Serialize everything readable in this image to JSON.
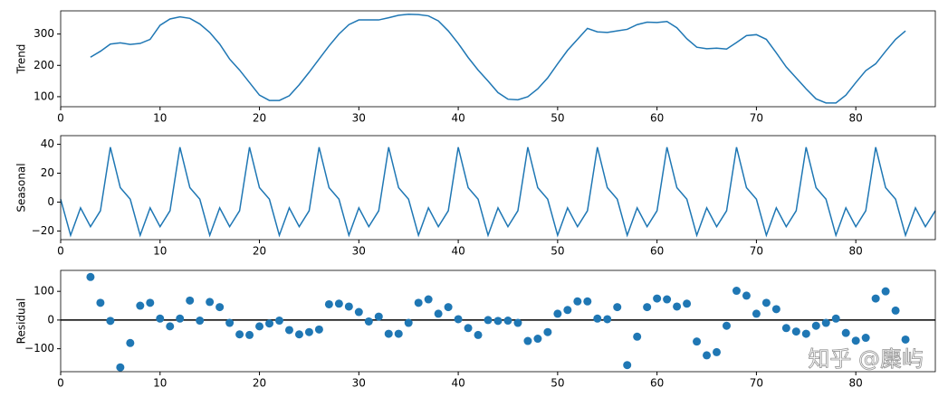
{
  "chart_data": [
    {
      "type": "line",
      "ylabel": "Trend",
      "color": "#1f77b4",
      "x": [
        3,
        4,
        5,
        6,
        7,
        8,
        9,
        10,
        11,
        12,
        13,
        14,
        15,
        16,
        17,
        18,
        19,
        20,
        21,
        22,
        23,
        24,
        25,
        26,
        27,
        28,
        29,
        30,
        31,
        32,
        33,
        34,
        35,
        36,
        37,
        38,
        39,
        40,
        41,
        42,
        43,
        44,
        45,
        46,
        47,
        48,
        49,
        50,
        51,
        52,
        53,
        54,
        55,
        56,
        57,
        58,
        59,
        60,
        61,
        62,
        63,
        64,
        65,
        66,
        67,
        68,
        69,
        70,
        71,
        72,
        73,
        74,
        75,
        76,
        77,
        78,
        79,
        80,
        81,
        82,
        83,
        84,
        85
      ],
      "values": [
        226,
        245,
        268,
        272,
        267,
        270,
        283,
        328,
        348,
        355,
        350,
        332,
        305,
        268,
        220,
        185,
        145,
        105,
        88,
        88,
        103,
        138,
        178,
        220,
        262,
        300,
        330,
        345,
        345,
        345,
        352,
        360,
        363,
        362,
        358,
        342,
        310,
        270,
        225,
        185,
        150,
        113,
        92,
        90,
        100,
        125,
        160,
        205,
        248,
        283,
        318,
        307,
        305,
        310,
        315,
        330,
        338,
        337,
        340,
        320,
        285,
        258,
        253,
        255,
        252,
        273,
        295,
        298,
        283,
        240,
        195,
        160,
        125,
        93,
        80,
        80,
        105,
        145,
        183,
        205,
        245,
        283,
        310
      ],
      "xlim": [
        0,
        88
      ],
      "ylim": [
        68,
        374
      ],
      "xticks": [
        0,
        10,
        20,
        30,
        40,
        50,
        60,
        70,
        80
      ],
      "yticks": [
        100,
        200,
        300
      ]
    },
    {
      "type": "line",
      "ylabel": "Seasonal",
      "color": "#1f77b4",
      "x": [
        0,
        1,
        2,
        3,
        4,
        5,
        6,
        7,
        8,
        9,
        10,
        11,
        12,
        13,
        14,
        15,
        16,
        17,
        18,
        19,
        20,
        21,
        22,
        23,
        24,
        25,
        26,
        27,
        28,
        29,
        30,
        31,
        32,
        33,
        34,
        35,
        36,
        37,
        38,
        39,
        40,
        41,
        42,
        43,
        44,
        45,
        46,
        47,
        48,
        49,
        50,
        51,
        52,
        53,
        54,
        55,
        56,
        57,
        58,
        59,
        60,
        61,
        62,
        63,
        64,
        65,
        66,
        67,
        68,
        69,
        70,
        71,
        72,
        73,
        74,
        75,
        76,
        77,
        78,
        79,
        80,
        81,
        82,
        83,
        84,
        85,
        86,
        87,
        88
      ],
      "values": [
        2,
        -23,
        -4,
        -17,
        -6,
        38,
        10,
        2,
        -23,
        -4,
        -17,
        -6,
        38,
        10,
        2,
        -23,
        -4,
        -17,
        -6,
        38,
        10,
        2,
        -23,
        -4,
        -17,
        -6,
        38,
        10,
        2,
        -23,
        -4,
        -17,
        -6,
        38,
        10,
        2,
        -23,
        -4,
        -17,
        -6,
        38,
        10,
        2,
        -23,
        -4,
        -17,
        -6,
        38,
        10,
        2,
        -23,
        -4,
        -17,
        -6,
        38,
        10,
        2,
        -23,
        -4,
        -17,
        -6,
        38,
        10,
        2,
        -23,
        -4,
        -17,
        -6,
        38,
        10,
        2,
        -23,
        -4,
        -17,
        -6,
        38,
        10,
        2,
        -23,
        -4,
        -17,
        -6,
        38,
        10,
        2,
        -23,
        -4,
        -17,
        -6
      ],
      "xlim": [
        0,
        88
      ],
      "ylim": [
        -26,
        46
      ],
      "xticks": [
        0,
        10,
        20,
        30,
        40,
        50,
        60,
        70,
        80
      ],
      "yticks": [
        {
          "value": -20,
          "label": "−20"
        },
        0,
        20,
        40
      ]
    },
    {
      "type": "scatter",
      "ylabel": "Residual",
      "color": "#1f77b4",
      "hline": 0,
      "x": [
        3,
        4,
        5,
        6,
        7,
        8,
        9,
        10,
        11,
        12,
        13,
        14,
        15,
        16,
        17,
        18,
        19,
        20,
        21,
        22,
        23,
        24,
        25,
        26,
        27,
        28,
        29,
        30,
        31,
        32,
        33,
        34,
        35,
        36,
        37,
        38,
        39,
        40,
        41,
        42,
        43,
        44,
        45,
        46,
        47,
        48,
        49,
        50,
        51,
        52,
        53,
        54,
        55,
        56,
        57,
        58,
        59,
        60,
        61,
        62,
        63,
        64,
        65,
        66,
        67,
        68,
        69,
        70,
        71,
        72,
        73,
        74,
        75,
        76,
        77,
        78,
        79,
        80,
        81,
        82,
        83,
        84,
        85
      ],
      "values": [
        150,
        60,
        -3,
        -165,
        -80,
        50,
        60,
        5,
        -22,
        5,
        68,
        -2,
        63,
        45,
        -10,
        -50,
        -52,
        -22,
        -12,
        -2,
        -35,
        -50,
        -42,
        -33,
        55,
        57,
        47,
        28,
        -5,
        12,
        -48,
        -48,
        -10,
        60,
        72,
        22,
        45,
        3,
        -28,
        -52,
        0,
        -3,
        -2,
        -10,
        -73,
        -65,
        -42,
        22,
        35,
        65,
        65,
        5,
        3,
        45,
        -157,
        -58,
        45,
        75,
        72,
        47,
        57,
        -75,
        -123,
        -112,
        -20,
        102,
        85,
        22,
        60,
        38,
        -28,
        -40,
        -48,
        -20,
        -10,
        5,
        -45,
        -72,
        -62,
        75,
        100,
        33,
        -68
      ],
      "xlim": [
        0,
        88
      ],
      "ylim": [
        -180,
        173
      ],
      "xticks": [
        0,
        10,
        20,
        30,
        40,
        50,
        60,
        70,
        80
      ],
      "yticks": [
        {
          "value": -100,
          "label": "−100"
        },
        0,
        100
      ]
    }
  ],
  "watermark": "知乎 @麋屿"
}
